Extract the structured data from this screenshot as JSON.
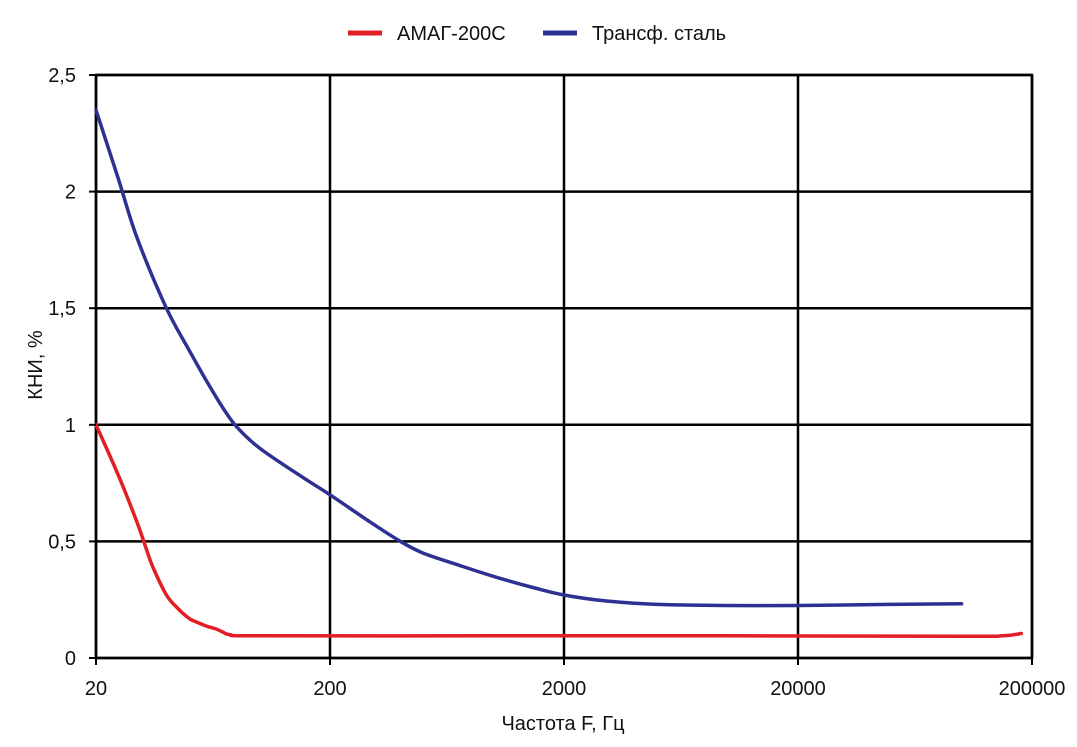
{
  "chart_data": {
    "type": "line",
    "title": "",
    "xlabel": "Частота F, Гц",
    "ylabel": "КНИ, %",
    "x_scale": "log",
    "xlim": [
      20,
      200000
    ],
    "ylim": [
      0,
      2.5
    ],
    "grid": true,
    "legend_position": "top-center",
    "x_ticks": [
      {
        "value": 20,
        "label": "20"
      },
      {
        "value": 200,
        "label": "200"
      },
      {
        "value": 2000,
        "label": "2000"
      },
      {
        "value": 20000,
        "label": "20000"
      },
      {
        "value": 200000,
        "label": "200000"
      }
    ],
    "y_ticks": [
      {
        "value": 0,
        "label": "0"
      },
      {
        "value": 0.5,
        "label": "0,5"
      },
      {
        "value": 1,
        "label": "1"
      },
      {
        "value": 1.5,
        "label": "1,5"
      },
      {
        "value": 2,
        "label": "2"
      },
      {
        "value": 2.5,
        "label": "2,5"
      }
    ],
    "series": [
      {
        "name": "АМАГ-200С",
        "color": "#e31e24",
        "points": [
          [
            20,
            1.0
          ],
          [
            25,
            0.78
          ],
          [
            30,
            0.58
          ],
          [
            33,
            0.46
          ],
          [
            35,
            0.39
          ],
          [
            40,
            0.27
          ],
          [
            45,
            0.21
          ],
          [
            50,
            0.17
          ],
          [
            55,
            0.15
          ],
          [
            60,
            0.135
          ],
          [
            65,
            0.125
          ],
          [
            70,
            0.11
          ],
          [
            75,
            0.1
          ],
          [
            100,
            0.095
          ],
          [
            1000,
            0.095
          ],
          [
            10000,
            0.095
          ],
          [
            100000,
            0.093
          ],
          [
            150000,
            0.095
          ],
          [
            180000,
            0.105
          ]
        ]
      },
      {
        "name": "Трансф. сталь",
        "color": "#2e3192",
        "points": [
          [
            20,
            2.35
          ],
          [
            25,
            2.05
          ],
          [
            30,
            1.8
          ],
          [
            40,
            1.5
          ],
          [
            50,
            1.32
          ],
          [
            60,
            1.18
          ],
          [
            70,
            1.07
          ],
          [
            80,
            0.99
          ],
          [
            100,
            0.9
          ],
          [
            150,
            0.78
          ],
          [
            200,
            0.7
          ],
          [
            300,
            0.58
          ],
          [
            400,
            0.5
          ],
          [
            500,
            0.45
          ],
          [
            700,
            0.4
          ],
          [
            1000,
            0.35
          ],
          [
            1500,
            0.3
          ],
          [
            2000,
            0.27
          ],
          [
            3000,
            0.245
          ],
          [
            5000,
            0.23
          ],
          [
            10000,
            0.225
          ],
          [
            20000,
            0.225
          ],
          [
            50000,
            0.23
          ],
          [
            100000,
            0.233
          ]
        ]
      }
    ]
  }
}
